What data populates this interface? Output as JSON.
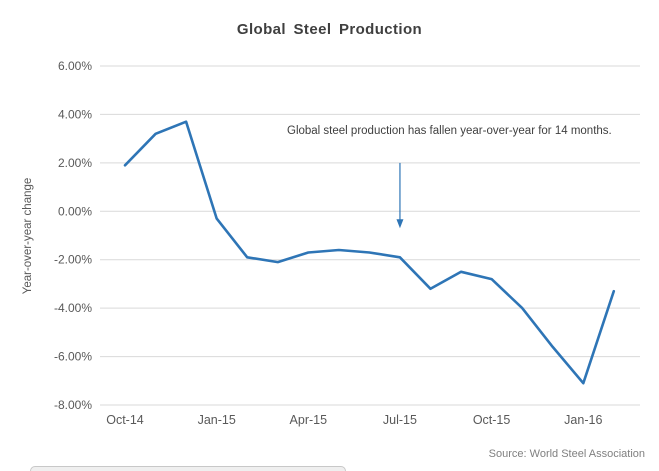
{
  "chart": {
    "title": "Global Steel Production",
    "ylabel": "Year-over-year change",
    "annotation": "Global steel production has fallen year-over-year for 14 months.",
    "source": "Source: World Steel Association"
  },
  "chart_data": {
    "type": "line",
    "title": "Global Steel Production",
    "xlabel": "",
    "ylabel": "Year-over-year change",
    "categories": [
      "Oct-14",
      "Nov-14",
      "Dec-14",
      "Jan-15",
      "Feb-15",
      "Mar-15",
      "Apr-15",
      "May-15",
      "Jun-15",
      "Jul-15",
      "Aug-15",
      "Sep-15",
      "Oct-15",
      "Nov-15",
      "Dec-15",
      "Jan-16",
      "Feb-16"
    ],
    "values": [
      1.9,
      3.2,
      3.7,
      -0.3,
      -1.9,
      -2.1,
      -1.7,
      -1.6,
      -1.7,
      -1.9,
      -3.2,
      -2.5,
      -2.8,
      -4.0,
      -5.6,
      -7.1,
      -3.3
    ],
    "value_unit": "percent",
    "ylim": [
      -8,
      6
    ],
    "yticks": [
      6,
      4,
      2,
      0,
      -2,
      -4,
      -6,
      -8
    ],
    "xticks": [
      "Oct-14",
      "Jan-15",
      "Apr-15",
      "Jul-15",
      "Oct-15",
      "Jan-16"
    ],
    "grid": "horizontal",
    "legend": false,
    "line_color": "#2E75B6",
    "grid_color": "#D9D9D9",
    "tick_color": "#595959",
    "annotation": {
      "text": "Global steel production has fallen year-over-year for 14 months.",
      "color": "#2E75B6",
      "arrow": {
        "month": "Jul-15",
        "from_value": 2.0,
        "to_value": -0.7
      }
    },
    "source": "Source: World Steel Association"
  }
}
